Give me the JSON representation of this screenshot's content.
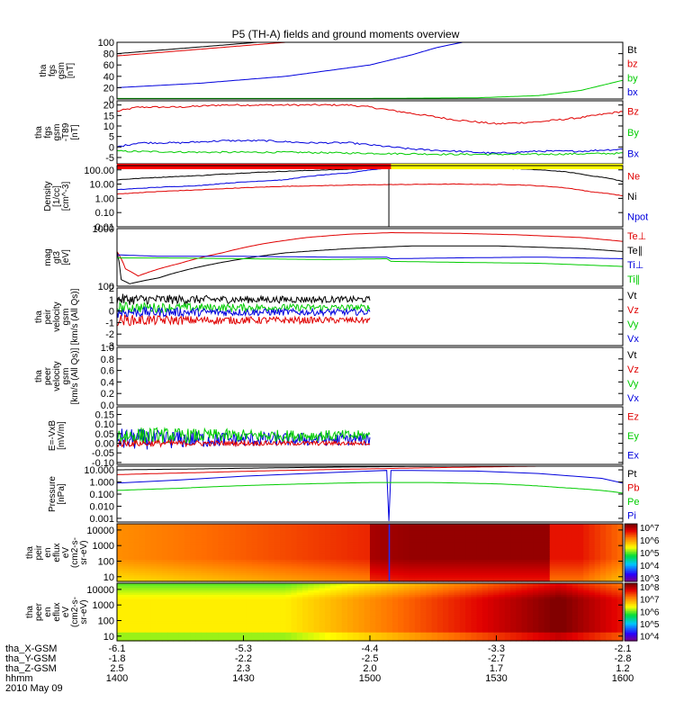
{
  "title": "P5 (TH-A) fields and ground moments overview",
  "date_label": "2010 May 09",
  "chart_data": {
    "type": "line",
    "title": "P5 (TH-A) fields and ground moments overview",
    "x_axis": {
      "rows": [
        {
          "label": "tha_X-GSM",
          "values": [
            "-6.1",
            "-5.3",
            "-4.4",
            "-3.3",
            "-2.1"
          ]
        },
        {
          "label": "tha_Y-GSM",
          "values": [
            "-1.8",
            "-2.2",
            "-2.5",
            "-2.7",
            "-2.8"
          ]
        },
        {
          "label": "tha_Z-GSM",
          "values": [
            "2.5",
            "2.3",
            "2.0",
            "1.7",
            "1.2"
          ]
        },
        {
          "label": "hhmm",
          "values": [
            "1400",
            "1430",
            "1500",
            "1530",
            "1600"
          ]
        }
      ],
      "time_range_min": [
        0,
        120
      ]
    },
    "panels": [
      {
        "id": "fgs-gsm",
        "ylabel": [
          "tha",
          "fgs",
          "gsm",
          "[nT]"
        ],
        "yscale": "linear",
        "ylim": [
          0,
          100
        ],
        "ticks": [
          "0",
          "20",
          "40",
          "60",
          "80",
          "100"
        ],
        "tick_values": [
          0,
          20,
          40,
          60,
          80,
          100
        ],
        "legend": [
          {
            "name": "Bt",
            "color": "#000000"
          },
          {
            "name": "bz",
            "color": "#e00000"
          },
          {
            "name": "by",
            "color": "#00cc00"
          },
          {
            "name": "bx",
            "color": "#0000dd"
          }
        ],
        "series": [
          {
            "name": "Bt",
            "color": "#000000",
            "t": [
              0,
              20,
              40
            ],
            "v": [
              80,
              92,
              104
            ]
          },
          {
            "name": "bz",
            "color": "#e00000",
            "t": [
              0,
              20,
              40
            ],
            "v": [
              76,
              88,
              100
            ]
          },
          {
            "name": "by",
            "color": "#00cc00",
            "t": [
              0,
              60,
              85,
              100,
              110,
              120
            ],
            "v": [
              1,
              1,
              2,
              6,
              15,
              33
            ]
          },
          {
            "name": "bx",
            "color": "#0000dd",
            "t": [
              0,
              20,
              40,
              60,
              70,
              76,
              82
            ],
            "v": [
              20,
              28,
              40,
              60,
              78,
              91,
              100
            ]
          }
        ]
      },
      {
        "id": "fgs-gsm-t89",
        "ylabel": [
          "tha",
          "fgs",
          "gsm",
          "-T89",
          "[nT]"
        ],
        "yscale": "linear",
        "ylim": [
          -8,
          22
        ],
        "ticks": [
          "-5",
          "0",
          "5",
          "10",
          "15",
          "20"
        ],
        "tick_values": [
          -5,
          0,
          5,
          10,
          15,
          20
        ],
        "legend": [
          {
            "name": "Bz",
            "color": "#e00000"
          },
          {
            "name": "By",
            "color": "#00cc00"
          },
          {
            "name": "Bx",
            "color": "#0000dd"
          }
        ],
        "series": [
          {
            "name": "Bz",
            "color": "#e00000",
            "t": [
              0,
              5,
              15,
              25,
              35,
              45,
              50,
              55,
              60,
              70,
              80,
              90,
              100,
              110,
              120
            ],
            "v": [
              17,
              19,
              19,
              20,
              20,
              20,
              20,
              20,
              19,
              16,
              13,
              11,
              12,
              14,
              17
            ]
          },
          {
            "name": "By",
            "color": "#00cc00",
            "t": [
              0,
              20,
              40,
              60,
              80,
              100,
              120
            ],
            "v": [
              -2,
              -2.5,
              -2.5,
              -3,
              -3.5,
              -3.5,
              -3
            ]
          },
          {
            "name": "Bx",
            "color": "#0000dd",
            "t": [
              0,
              5,
              15,
              25,
              35,
              45,
              55,
              60,
              70,
              80,
              90,
              100,
              110,
              120
            ],
            "v": [
              0,
              2,
              2,
              3,
              3,
              2,
              2,
              1,
              -1,
              -2,
              -3,
              -2,
              -2,
              -1
            ]
          }
        ]
      },
      {
        "id": "density",
        "ylabel": [
          "Density",
          "[1/cc]",
          "[cm^-3]"
        ],
        "yscale": "log",
        "ylim": [
          0.01,
          200
        ],
        "ticks": [
          "0.01",
          "0.10",
          "1.00",
          "10.00",
          "100.00"
        ],
        "tick_values": [
          0.01,
          0.1,
          1,
          10,
          100
        ],
        "legend": [
          {
            "name": "Ne",
            "color": "#e00000"
          },
          {
            "name": "Ni",
            "color": "#000000"
          },
          {
            "name": "Npot",
            "color": "#0000dd"
          }
        ],
        "series": [
          {
            "name": "Ni",
            "color": "#000000",
            "t": [
              0,
              20,
              40,
              60,
              80,
              95,
              105,
              112,
              120
            ],
            "v": [
              20,
              40,
              80,
              120,
              140,
              120,
              80,
              40,
              15
            ]
          },
          {
            "name": "Ne",
            "color": "#e00000",
            "t": [
              0,
              20,
              40,
              60,
              80,
              95,
              105,
              112,
              120
            ],
            "v": [
              2,
              4,
              7,
              9,
              10,
              9,
              6,
              3,
              1.5
            ]
          },
          {
            "name": "Npot",
            "color": "#0000dd",
            "t": [
              0,
              20,
              40,
              55,
              64,
              65,
              75
            ],
            "v": [
              4,
              8,
              20,
              60,
              130,
              150,
              130
            ]
          }
        ],
        "mode_bar": [
          {
            "t0": 0,
            "t1": 65,
            "color": "#ff0000"
          },
          {
            "t0": 65,
            "t1": 120,
            "color": "#ffff00"
          }
        ]
      },
      {
        "id": "mom-temps",
        "ylabel": [
          "mag",
          "gt3",
          "[eV]"
        ],
        "yscale": "log",
        "ylim": [
          100,
          1000
        ],
        "ticks": [
          "100",
          "1000"
        ],
        "tick_values": [
          100,
          1000
        ],
        "legend": [
          {
            "name": "Te⊥",
            "color": "#e00000"
          },
          {
            "name": "Te∥",
            "color": "#000000"
          },
          {
            "name": "Ti⊥",
            "color": "#0000dd"
          },
          {
            "name": "Ti∥",
            "color": "#00cc00"
          }
        ],
        "series": [
          {
            "name": "Te⊥",
            "color": "#e00000",
            "t": [
              0,
              2,
              5,
              15,
              25,
              35,
              45,
              55,
              65,
              80,
              95,
              110,
              120
            ],
            "v": [
              400,
              200,
              150,
              250,
              380,
              550,
              700,
              800,
              850,
              830,
              780,
              700,
              600
            ]
          },
          {
            "name": "Te∥",
            "color": "#000000",
            "t": [
              0,
              1,
              3,
              10,
              20,
              30,
              40,
              55,
              70,
              90,
              110,
              120
            ],
            "v": [
              400,
              130,
              110,
              140,
              220,
              300,
              380,
              450,
              500,
              500,
              450,
              400
            ]
          },
          {
            "name": "Ti⊥",
            "color": "#0000dd",
            "t": [
              0,
              10,
              30,
              50,
              64,
              65,
              80,
              100,
              120
            ],
            "v": [
              350,
              330,
              330,
              320,
              320,
              300,
              310,
              320,
              300
            ]
          },
          {
            "name": "Ti∥",
            "color": "#00cc00",
            "t": [
              0,
              10,
              30,
              50,
              64,
              65,
              80,
              100,
              120
            ],
            "v": [
              310,
              310,
              300,
              290,
              300,
              270,
              260,
              250,
              220
            ]
          }
        ]
      },
      {
        "id": "peir-velocity",
        "ylabel": [
          "tha",
          "peir",
          "velocity",
          "gsm",
          "[km/s (All Qs)]"
        ],
        "yscale": "linear",
        "ylim": [
          -3,
          2
        ],
        "ticks": [
          "-3",
          "-2",
          "-1",
          "0",
          "1",
          "2"
        ],
        "tick_values": [
          -3,
          -2,
          -1,
          0,
          1,
          2
        ],
        "legend": [
          {
            "name": "Vt",
            "color": "#000000"
          },
          {
            "name": "Vz",
            "color": "#e00000"
          },
          {
            "name": "Vy",
            "color": "#00cc00"
          },
          {
            "name": "Vx",
            "color": "#0000dd"
          }
        ],
        "series": [
          {
            "name": "Vt",
            "color": "#000000",
            "t": [
              0,
              60
            ],
            "mean": 1.0,
            "noise": 0.5
          },
          {
            "name": "Vy",
            "color": "#00cc00",
            "t": [
              0,
              60
            ],
            "mean": 0.3,
            "noise": 0.5
          },
          {
            "name": "Vx",
            "color": "#0000dd",
            "t": [
              0,
              60
            ],
            "mean": -0.1,
            "noise": 0.5
          },
          {
            "name": "Vz",
            "color": "#e00000",
            "t": [
              0,
              60
            ],
            "mean": -0.8,
            "noise": 0.5
          }
        ]
      },
      {
        "id": "peer-velocity",
        "ylabel": [
          "tha",
          "peer",
          "velocity",
          "gsm",
          "[km/s (All Qs)]"
        ],
        "yscale": "linear",
        "ylim": [
          0,
          1
        ],
        "ticks": [
          "0.0",
          "0.2",
          "0.4",
          "0.6",
          "0.8",
          "1.0"
        ],
        "tick_values": [
          0,
          0.2,
          0.4,
          0.6,
          0.8,
          1.0
        ],
        "legend": [
          {
            "name": "Vt",
            "color": "#000000"
          },
          {
            "name": "Vz",
            "color": "#e00000"
          },
          {
            "name": "Vy",
            "color": "#00cc00"
          },
          {
            "name": "Vx",
            "color": "#0000dd"
          }
        ],
        "series": []
      },
      {
        "id": "efield",
        "ylabel": [
          "E=-VxB",
          "[mV/m]"
        ],
        "yscale": "linear",
        "ylim": [
          -0.11,
          0.19
        ],
        "ticks": [
          "-0.10",
          "-0.05",
          "0.00",
          "0.05",
          "0.10",
          "0.15"
        ],
        "tick_values": [
          -0.1,
          -0.05,
          0,
          0.05,
          0.1,
          0.15
        ],
        "legend": [
          {
            "name": "Ez",
            "color": "#e00000"
          },
          {
            "name": "Ey",
            "color": "#00cc00"
          },
          {
            "name": "Ex",
            "color": "#0000dd"
          }
        ],
        "series": [
          {
            "name": "Ex",
            "color": "#0000dd",
            "t": [
              0,
              60
            ],
            "mean": 0.02,
            "noise": 0.06
          },
          {
            "name": "Ey",
            "color": "#00cc00",
            "t": [
              0,
              60
            ],
            "mean": 0.04,
            "noise": 0.05
          },
          {
            "name": "Ez",
            "color": "#e00000",
            "t": [
              0,
              60
            ],
            "mean": 0.0,
            "noise": 0.02
          }
        ]
      },
      {
        "id": "pressure",
        "ylabel": [
          "Pressure",
          "[nPa]"
        ],
        "yscale": "log",
        "ylim": [
          0.0005,
          20
        ],
        "ticks": [
          "0.001",
          "0.010",
          "0.100",
          "1.000",
          "10.000"
        ],
        "tick_values": [
          0.001,
          0.01,
          0.1,
          1,
          10
        ],
        "legend": [
          {
            "name": "Pt",
            "color": "#000000"
          },
          {
            "name": "Pb",
            "color": "#e00000"
          },
          {
            "name": "Pe",
            "color": "#00cc00"
          },
          {
            "name": "Pi",
            "color": "#0000dd"
          }
        ],
        "series": [
          {
            "name": "Pt",
            "color": "#000000",
            "t": [
              0,
              20,
              40,
              60,
              80
            ],
            "v": [
              10,
              12,
              15,
              18,
              20
            ]
          },
          {
            "name": "Pb",
            "color": "#e00000",
            "t": [
              0,
              20,
              40,
              60,
              80,
              100
            ],
            "v": [
              4,
              6,
              9,
              12,
              16,
              20
            ]
          },
          {
            "name": "Pi",
            "color": "#0000dd",
            "t": [
              0,
              15,
              30,
              45,
              60,
              64,
              64.5,
              65,
              70,
              85,
              100,
              115,
              120
            ],
            "v": [
              0.8,
              1.5,
              3,
              5,
              8,
              9,
              0.0006,
              9,
              9,
              8,
              5,
              2,
              0.8
            ]
          },
          {
            "name": "Pe",
            "color": "#00cc00",
            "t": [
              0,
              15,
              30,
              45,
              60,
              75,
              90,
              105,
              120
            ],
            "v": [
              0.2,
              0.3,
              0.5,
              0.7,
              0.9,
              0.9,
              0.7,
              0.35,
              0.12
            ]
          }
        ]
      },
      {
        "id": "peir-en-eflux",
        "type": "heatmap",
        "ylabel": [
          "tha",
          "peir",
          "en",
          "eflux",
          "eV",
          "(cm2-s-",
          "sr-eV)"
        ],
        "yscale": "log",
        "ylim": [
          5,
          25000
        ],
        "ticks": [
          "10",
          "100",
          "1000",
          "10000"
        ],
        "tick_values": [
          10,
          100,
          1000,
          10000
        ],
        "colorbar_ticks": [
          "10^3",
          "10^4",
          "10^5",
          "10^6",
          "10^7"
        ],
        "colorbar_range": [
          2.7,
          7.3
        ]
      },
      {
        "id": "peer-en-eflux",
        "type": "heatmap",
        "ylabel": [
          "tha",
          "peer",
          "en",
          "eflux",
          "eV",
          "(cm2-s-",
          "sr-eV)"
        ],
        "yscale": "log",
        "ylim": [
          5,
          25000
        ],
        "ticks": [
          "10",
          "100",
          "1000",
          "10000"
        ],
        "tick_values": [
          10,
          100,
          1000,
          10000
        ],
        "colorbar_ticks": [
          "10^4",
          "10^5",
          "10^6",
          "10^7",
          "10^8"
        ],
        "colorbar_range": [
          3.6,
          8.3
        ]
      }
    ]
  }
}
